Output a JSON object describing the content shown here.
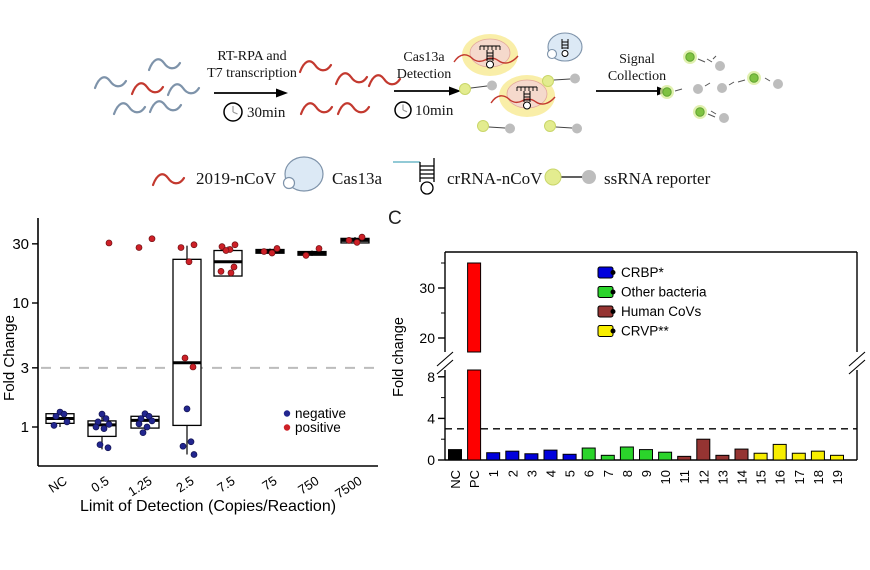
{
  "figure": {
    "panel_c_label": "C"
  },
  "schematic": {
    "steps": [
      {
        "line1": "RT-RPA and",
        "line2": "T7 transcription",
        "time": "30min"
      },
      {
        "line1": "Cas13a",
        "line2": "Detection",
        "time": "10min"
      },
      {
        "line1": "Signal",
        "line2": "Collection",
        "time": ""
      }
    ],
    "legend": [
      {
        "icon": "rna-wave-icon",
        "label": "2019-nCoV"
      },
      {
        "icon": "cas13a-blob-icon",
        "label": "Cas13a"
      },
      {
        "icon": "crrna-hairpin-icon",
        "label": "crRNA-nCoV"
      },
      {
        "icon": "ssrna-reporter-icon",
        "label": "ssRNA  reporter"
      }
    ]
  },
  "chart_data": [
    {
      "id": "limit-of-detection-boxplot",
      "type": "box",
      "title": "",
      "ylabel": "Fold Change",
      "xlabel": "Limit of Detection (Copies/Reaction)",
      "yscale": "log",
      "ylim": [
        0.55,
        40
      ],
      "yticks": [
        1,
        3,
        10,
        30
      ],
      "threshold": 3,
      "grid": false,
      "negative_color": "#22268F",
      "positive_color": "#CD2027",
      "legend": [
        {
          "label": "negative",
          "color": "#22268F"
        },
        {
          "label": "positive",
          "color": "#CD2027"
        }
      ],
      "groups": [
        {
          "category": "NC",
          "box": {
            "low": 1.0,
            "q1": 1.07,
            "median": 1.17,
            "q3": 1.28,
            "high": 1.33
          },
          "points": {
            "negative": [
              1.32,
              1.27,
              1.22,
              1.1,
              1.03
            ],
            "positive": []
          }
        },
        {
          "category": "0.5",
          "box": {
            "low": 0.66,
            "q1": 0.84,
            "median": 1.04,
            "q3": 1.12,
            "high": 1.28
          },
          "points": {
            "negative": [
              1.27,
              1.17,
              1.1,
              1.05,
              1.0,
              0.97,
              0.72,
              0.68
            ],
            "positive": [
              30.5
            ]
          }
        },
        {
          "category": "1.25",
          "box": {
            "low": 0.88,
            "q1": 0.98,
            "median": 1.13,
            "q3": 1.22,
            "high": 1.3
          },
          "points": {
            "negative": [
              1.28,
              1.22,
              1.17,
              1.12,
              1.06,
              1.0,
              0.9
            ],
            "positive": [
              33,
              28
            ]
          }
        },
        {
          "category": "2.5",
          "box": {
            "low": 0.6,
            "q1": 1.03,
            "median": 3.3,
            "q3": 22.5,
            "high": 29
          },
          "points": {
            "negative": [
              1.4,
              0.76,
              0.7,
              0.6
            ],
            "positive": [
              29.5,
              28,
              21.5,
              3.6,
              3.05
            ]
          }
        },
        {
          "category": "7.5",
          "box": {
            "low": 16.5,
            "q1": 16.5,
            "median": 21.5,
            "q3": 26.5,
            "high": 28.5
          },
          "points": {
            "negative": [],
            "positive": [
              29.5,
              28.5,
              27,
              26.5,
              19.5,
              18,
              17.5
            ]
          }
        },
        {
          "category": "75",
          "box": {
            "low": 24.8,
            "q1": 25.2,
            "median": 26,
            "q3": 27,
            "high": 27.5
          },
          "points": {
            "negative": [],
            "positive": [
              27.5,
              26,
              25.3
            ]
          }
        },
        {
          "category": "750",
          "box": {
            "low": 24,
            "q1": 24.3,
            "median": 25.2,
            "q3": 26,
            "high": 26.5
          },
          "points": {
            "negative": [],
            "positive": [
              27.5,
              24.2
            ]
          }
        },
        {
          "category": "7500",
          "box": {
            "low": 30,
            "q1": 30.5,
            "median": 32,
            "q3": 33.2,
            "high": 34
          },
          "points": {
            "negative": [],
            "positive": [
              34,
              32,
              30.8
            ]
          }
        }
      ]
    },
    {
      "id": "specificity-bar-chart",
      "type": "bar",
      "title": "",
      "ylabel": "Fold change",
      "xlabel": "",
      "threshold": 3,
      "y_axis_break": {
        "below_range": [
          0,
          9
        ],
        "above_range": [
          18,
          37
        ],
        "ticks_below": [
          0,
          4,
          8
        ],
        "minor_ticks_below": [
          2,
          6
        ],
        "ticks_above": [
          20,
          30
        ],
        "minor_ticks_above": [
          25,
          35
        ]
      },
      "group_colors": {
        "control_negative": "#000000",
        "control_positive": "#FE0000",
        "crbp": "#0000DC",
        "other_bacteria": "#2BD42B",
        "human_covs": "#953432",
        "crvp": "#F8EE00"
      },
      "legend": [
        {
          "label": "CRBP*",
          "group": "crbp"
        },
        {
          "label": "Other bacteria",
          "group": "other_bacteria"
        },
        {
          "label": "Human CoVs",
          "group": "human_covs"
        },
        {
          "label": "CRVP**",
          "group": "crvp"
        }
      ],
      "bars": [
        {
          "label": "NC",
          "value": 1.0,
          "group": "control_negative"
        },
        {
          "label": "PC",
          "value": 35,
          "group": "control_positive"
        },
        {
          "label": "1",
          "value": 0.7,
          "group": "crbp"
        },
        {
          "label": "2",
          "value": 0.85,
          "group": "crbp"
        },
        {
          "label": "3",
          "value": 0.6,
          "group": "crbp"
        },
        {
          "label": "4",
          "value": 0.95,
          "group": "crbp"
        },
        {
          "label": "5",
          "value": 0.55,
          "group": "crbp"
        },
        {
          "label": "6",
          "value": 1.15,
          "group": "other_bacteria"
        },
        {
          "label": "7",
          "value": 0.45,
          "group": "other_bacteria"
        },
        {
          "label": "8",
          "value": 1.25,
          "group": "other_bacteria"
        },
        {
          "label": "9",
          "value": 1.0,
          "group": "other_bacteria"
        },
        {
          "label": "10",
          "value": 0.75,
          "group": "other_bacteria"
        },
        {
          "label": "11",
          "value": 0.35,
          "group": "human_covs"
        },
        {
          "label": "12",
          "value": 2.0,
          "group": "human_covs"
        },
        {
          "label": "13",
          "value": 0.45,
          "group": "human_covs"
        },
        {
          "label": "14",
          "value": 1.05,
          "group": "human_covs"
        },
        {
          "label": "15",
          "value": 0.65,
          "group": "crvp"
        },
        {
          "label": "16",
          "value": 1.5,
          "group": "crvp"
        },
        {
          "label": "17",
          "value": 0.65,
          "group": "crvp"
        },
        {
          "label": "18",
          "value": 0.85,
          "group": "crvp"
        },
        {
          "label": "19",
          "value": 0.45,
          "group": "crvp"
        }
      ]
    }
  ]
}
